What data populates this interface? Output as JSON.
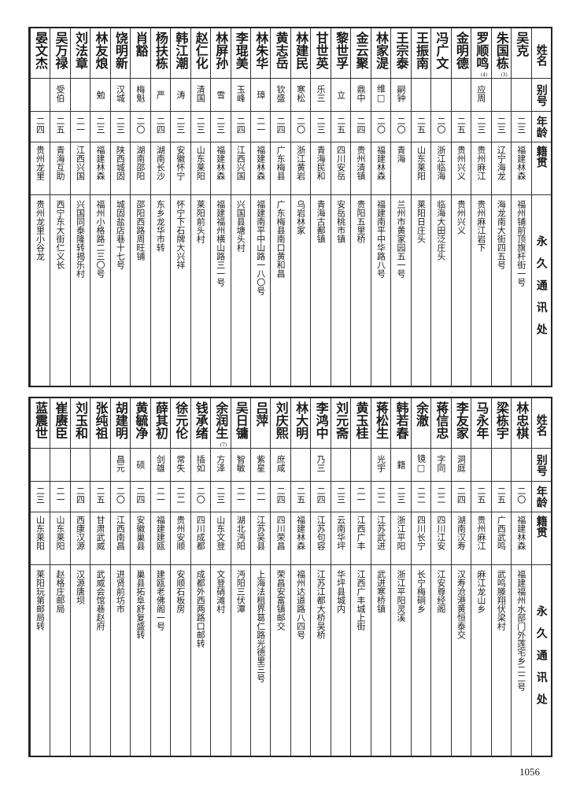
{
  "headers": {
    "name": "姓名",
    "alias": "别号",
    "age": "年龄",
    "origin": "籍贯",
    "address": "永久通讯处"
  },
  "top_section": [
    {
      "name": "吴克",
      "alias": "",
      "age": "二三",
      "origin": "福建林森",
      "address": "福州铺前顶旗杆街一号"
    },
    {
      "name": "朱国栋",
      "note": "(3)",
      "alias": "",
      "age": "二三",
      "origin": "辽宁海龙",
      "address": "海龙南大街四五号"
    },
    {
      "name": "罗顺鸣",
      "note": "(4)",
      "alias": "应周",
      "age": "二三",
      "origin": "贵州麻江",
      "address": "贵州麻江岩下"
    },
    {
      "name": "金明德",
      "alias": "",
      "age": "二五",
      "origin": "贵州兴义",
      "address": "贵州兴义"
    },
    {
      "name": "冯广文",
      "alias": "",
      "age": "二〇",
      "origin": "浙江临海",
      "address": "临海大田泛庄头"
    },
    {
      "name": "王振南",
      "alias": "",
      "age": "二五",
      "origin": "山东莱阳",
      "address": "莱阳日庄头"
    },
    {
      "name": "王宗泰",
      "alias": "嗣钟",
      "age": "二〇",
      "origin": "青海",
      "address": "兰州市黄家园五一号"
    },
    {
      "name": "林家湜",
      "alias": "维□",
      "age": "二〇",
      "origin": "福建林森",
      "address": "福建南平中华路八号"
    },
    {
      "name": "金云聚",
      "alias": "鼎中",
      "age": "二四",
      "origin": "贵州清镇",
      "address": "贵阳五里桥"
    },
    {
      "name": "黎世孚",
      "alias": "立",
      "age": "二五",
      "origin": "四川安岳",
      "address": "安岳桃市镇"
    },
    {
      "name": "甘世英",
      "alias": "乐三",
      "age": "二三",
      "origin": "青海民和",
      "address": "青海古鄯镇"
    },
    {
      "name": "林建民",
      "alias": "寒松",
      "age": "二〇",
      "origin": "浙江黄岩",
      "address": "乌岩林家"
    },
    {
      "name": "黄志岳",
      "alias": "钦盛",
      "age": "二四",
      "origin": "广东梅县",
      "address": "广东梅县南口黄和昌"
    },
    {
      "name": "林朱华",
      "alias": "璋",
      "age": "二一",
      "origin": "福建林森",
      "address": "福建南平中山路一八〇号"
    },
    {
      "name": "李琨美",
      "alias": "玉峰",
      "age": "二四",
      "origin": "江西兴国",
      "address": "兴国县塘头村"
    },
    {
      "name": "林屏孙",
      "alias": "雪",
      "age": "二三",
      "origin": "福建林森",
      "address": "福建福州横山路三一号"
    },
    {
      "name": "赵仁化",
      "alias": "清国",
      "age": "二三",
      "origin": "山东莱阳",
      "address": "莱阳前头村"
    },
    {
      "name": "韩江潮",
      "alias": "涛",
      "age": "二三",
      "origin": "安徽怀宁",
      "address": "怀宁下石牌大兴祥"
    },
    {
      "name": "杨扶栋",
      "alias": "严",
      "age": "二四",
      "origin": "湖南长沙",
      "address": "东乡龙华市转"
    },
    {
      "name": "肖豁",
      "alias": "梅魁",
      "age": "二〇",
      "origin": "湖南邵阳",
      "address": "邵阳西路周旺铺"
    },
    {
      "name": "饶明新",
      "alias": "汉城",
      "age": "二三",
      "origin": "陕西城固",
      "address": "城固盐店巷十七号"
    },
    {
      "name": "林友烺",
      "alias": "勉",
      "age": "二三",
      "origin": "福建林森",
      "address": "福州小格路二三〇号"
    },
    {
      "name": "刘法章",
      "alias": "",
      "age": "二一",
      "origin": "江西兴国",
      "address": "兴国同泰隆转揭乐村"
    },
    {
      "name": "吴万禄",
      "alias": "受伯",
      "age": "二五",
      "origin": "青海互助",
      "address": "西宁东大街仁义长"
    },
    {
      "name": "晏文杰",
      "alias": "",
      "age": "二四",
      "origin": "贵州龙里",
      "address": "贵州龙里小谷龙"
    }
  ],
  "bottom_section": [
    {
      "name": "林忠棋",
      "alias": "",
      "age": "二〇",
      "origin": "福建林森",
      "address": "福建福州水部门外莲宅乡二二号"
    },
    {
      "name": "梁栋宇",
      "alias": "",
      "age": "二五",
      "origin": "广西武鸣",
      "address": "武鸣滕翔伏梁村"
    },
    {
      "name": "马永年",
      "alias": "",
      "age": "二五",
      "origin": "贵州麻江",
      "address": "麻江龙山乡"
    },
    {
      "name": "李友家",
      "alias": "洞庭",
      "age": "二四",
      "origin": "湖南汉寿",
      "address": "汉寿沧港黄恒泰交"
    },
    {
      "name": "蒋信忠",
      "alias": "字同",
      "age": "二二",
      "origin": "四川江安",
      "address": "江安尊经阁"
    },
    {
      "name": "余澈",
      "alias": "镜□",
      "age": "二二",
      "origin": "四川长宁",
      "address": "长宁梅硐乡"
    },
    {
      "name": "韩若春",
      "alias": "籍",
      "age": "二三",
      "origin": "浙江平阳",
      "address": "浙江平阳灵溪"
    },
    {
      "name": "蒋松生",
      "alias": "光宇",
      "age": "二二",
      "origin": "江苏武进",
      "address": "武进寒桥镇"
    },
    {
      "name": "黄玉桂",
      "alias": "",
      "age": "二一",
      "origin": "江西广丰",
      "address": "江西广丰城上街"
    },
    {
      "name": "刘元斋",
      "alias": "",
      "age": "二三",
      "origin": "云南华坪",
      "address": "华坪县城内"
    },
    {
      "name": "李鸿中",
      "alias": "乃三",
      "age": "二四",
      "origin": "江苏句容",
      "address": "江苏江都大桥吴桥"
    },
    {
      "name": "林大明",
      "alias": "",
      "age": "二五",
      "origin": "福建林森",
      "address": "福州达道路八四号"
    },
    {
      "name": "刘庆熙",
      "alias": "庶咸",
      "age": "二四",
      "origin": "四川荣昌",
      "address": "荣昌安富镇邮交"
    },
    {
      "name": "吕萍",
      "alias": "紫星",
      "age": "二一",
      "origin": "江苏吴县",
      "address": "上海法租界葛仁路光德里三号"
    },
    {
      "name": "吴日镛",
      "alias": "智敏",
      "age": "二一",
      "origin": "湖北沔阳",
      "address": "沔阳三伏潭"
    },
    {
      "name": "余润生",
      "note": "(7)",
      "alias": "方泽",
      "age": "二三",
      "origin": "山东文登",
      "address": "文登硝滩村"
    },
    {
      "name": "钱承绪",
      "alias": "插如",
      "age": "二〇",
      "origin": "四川成都",
      "address": "成都外西两路口邮转"
    },
    {
      "name": "徐元伦",
      "alias": "常失",
      "age": "二二",
      "origin": "贵州安顺",
      "address": "安顺石板房"
    },
    {
      "name": "薛其初",
      "alias": "剑雄",
      "age": "二一",
      "origin": "福建建瓯",
      "address": "建瓯老佛阁一号"
    },
    {
      "name": "黄毓净",
      "alias": "硕",
      "age": "二四",
      "origin": "安徽巢县",
      "address": "巢县拓阜舒复盛转"
    },
    {
      "name": "胡建明",
      "alias": "昌元",
      "age": "二〇",
      "origin": "江西南昌",
      "address": "进贤前坊市"
    },
    {
      "name": "张纯祖",
      "alias": "",
      "age": "二五",
      "origin": "甘肃武威",
      "address": "武威会馆巷赵府"
    },
    {
      "name": "刘玉和",
      "alias": "",
      "age": "二四",
      "origin": "西康汉源",
      "address": "汉源唐坝"
    },
    {
      "name": "崔赓臣",
      "alias": "",
      "age": "二一",
      "origin": "山东莱阳",
      "address": "赵格庄邮局"
    },
    {
      "name": "蓝震世",
      "alias": "",
      "age": "二三",
      "origin": "山东莱阳",
      "address": "莱阳玩第邮局转"
    }
  ],
  "page_number": "1056"
}
